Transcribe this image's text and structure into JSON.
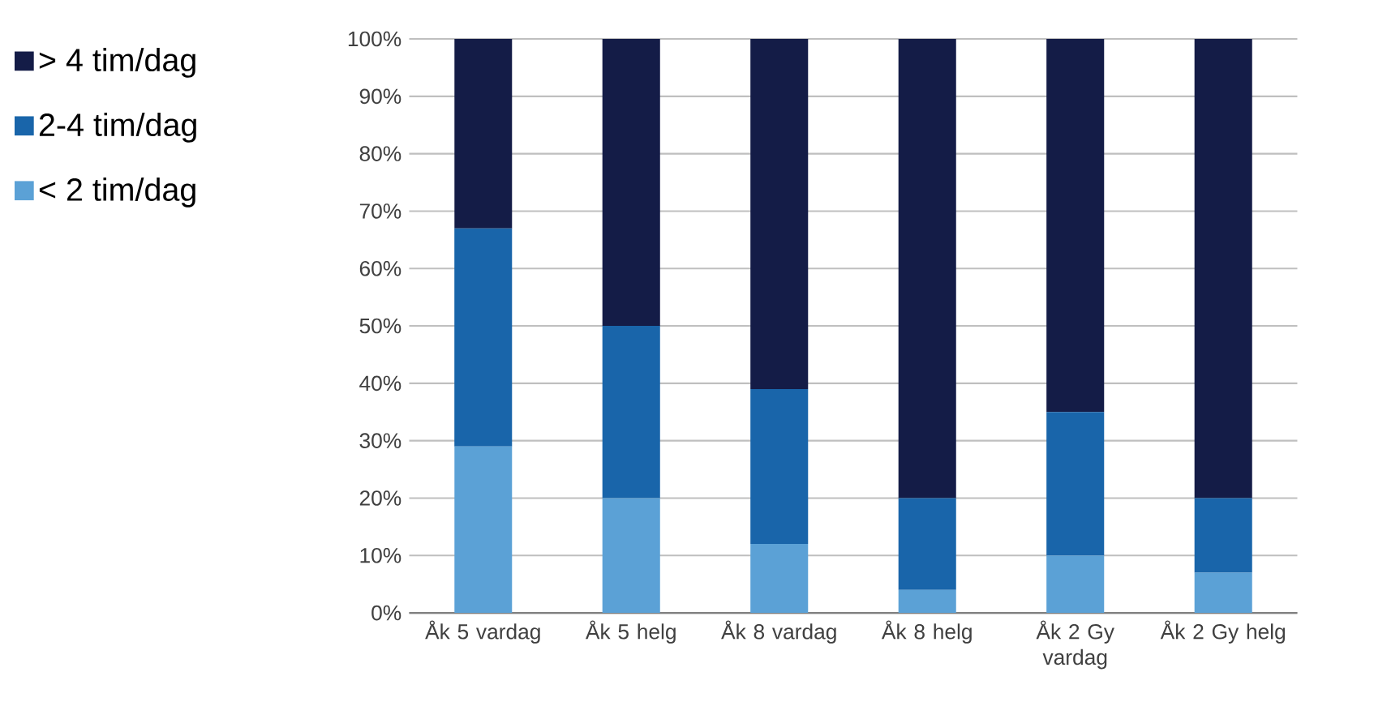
{
  "chart_data": {
    "type": "bar",
    "stacked": true,
    "categories": [
      "Åk 5 vardag",
      "Åk 5 helg",
      "Åk 8 vardag",
      "Åk 8 helg",
      "Åk 2 Gy vardag",
      "Åk 2 Gy helg"
    ],
    "series": [
      {
        "name": "< 2 tim/dag",
        "color": "#5ba1d6",
        "values": [
          29,
          20,
          12,
          4,
          10,
          7
        ]
      },
      {
        "name": "2-4 tim/dag",
        "color": "#1965aa",
        "values": [
          38,
          30,
          27,
          16,
          25,
          13
        ]
      },
      {
        "name": "> 4 tim/dag",
        "color": "#141c47",
        "values": [
          33,
          50,
          61,
          80,
          65,
          80
        ]
      }
    ],
    "ylim": [
      0,
      100
    ],
    "yticks": [
      {
        "value": 0,
        "label": "0%"
      },
      {
        "value": 10,
        "label": "10%"
      },
      {
        "value": 20,
        "label": "20%"
      },
      {
        "value": 30,
        "label": "30%"
      },
      {
        "value": 40,
        "label": "40%"
      },
      {
        "value": 50,
        "label": "50%"
      },
      {
        "value": 60,
        "label": "60%"
      },
      {
        "value": 70,
        "label": "70%"
      },
      {
        "value": 80,
        "label": "80%"
      },
      {
        "value": 90,
        "label": "90%"
      },
      {
        "value": 100,
        "label": "100%"
      }
    ],
    "grid": "y",
    "legend": "left"
  }
}
